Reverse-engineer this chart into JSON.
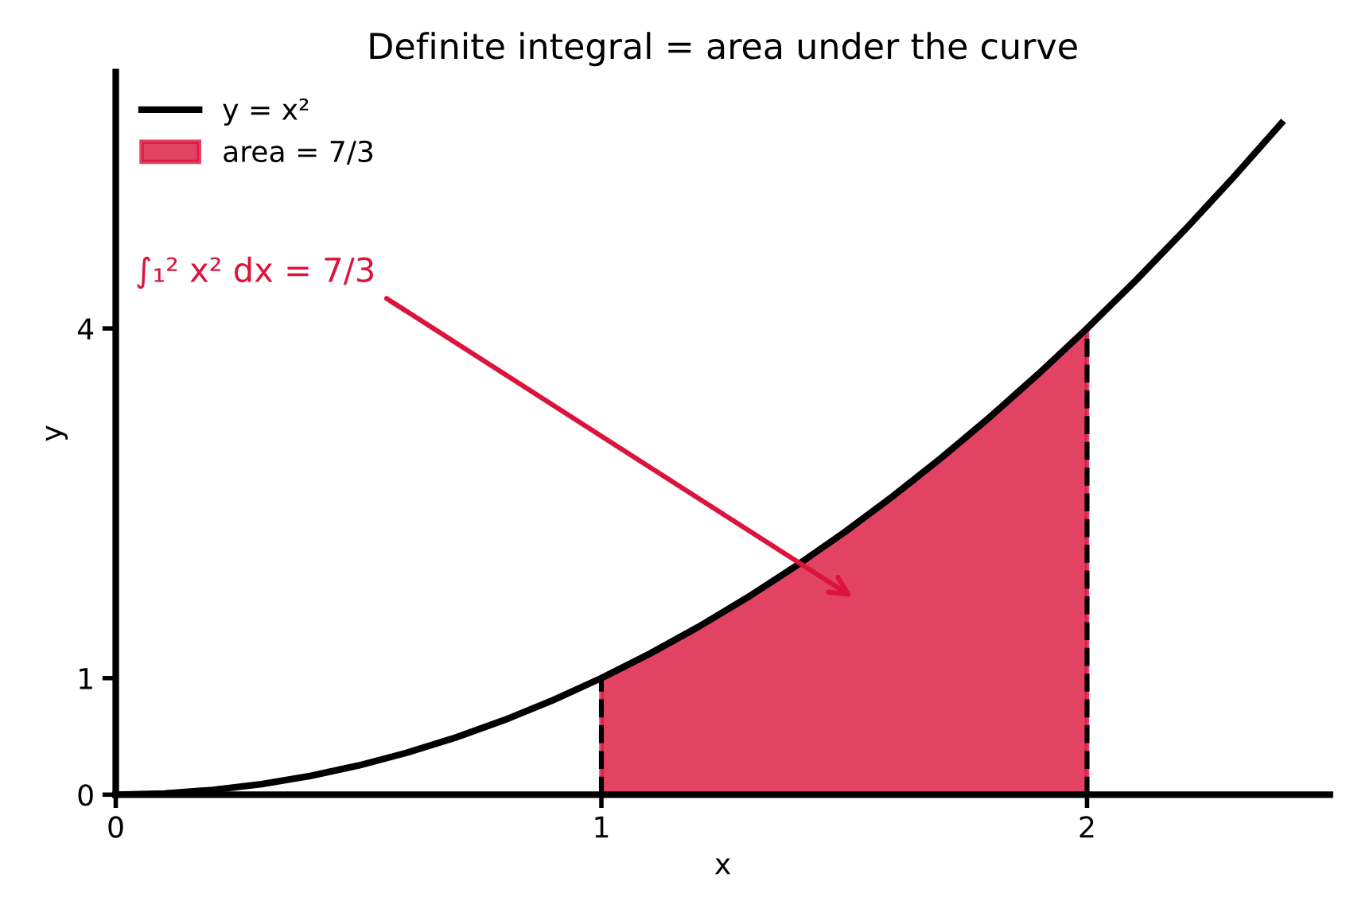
{
  "chart_data": {
    "type": "line",
    "title": "Definite integral = area under the curve",
    "xlabel": "x",
    "ylabel": "y",
    "xlim": [
      0,
      2.5
    ],
    "ylim": [
      0,
      6.2
    ],
    "xticks": [
      0,
      1,
      2
    ],
    "yticks": [
      0,
      1,
      4
    ],
    "grid": false,
    "legend": "top left",
    "marker": "none",
    "series": [
      {
        "name": "y = x²",
        "color": "#000000",
        "line_style": "solid",
        "x": [
          0,
          0.1,
          0.2,
          0.3,
          0.4,
          0.5,
          0.6,
          0.7,
          0.8,
          0.9,
          1.0,
          1.1,
          1.2,
          1.3,
          1.4,
          1.5,
          1.6,
          1.7,
          1.8,
          1.9,
          2.0,
          2.1,
          2.2,
          2.3,
          2.4
        ],
        "values": [
          0,
          0.01,
          0.04,
          0.09,
          0.16,
          0.25,
          0.36,
          0.49,
          0.64,
          0.81,
          1.0,
          1.21,
          1.44,
          1.69,
          1.96,
          2.25,
          2.56,
          2.89,
          3.24,
          3.61,
          4.0,
          4.41,
          4.84,
          5.29,
          5.76
        ]
      },
      {
        "name": "area = 7/3",
        "type": "area",
        "color": "#dc143c",
        "x": [
          1.0,
          1.2,
          1.4,
          1.6,
          1.8,
          2.0
        ],
        "values": [
          1.0,
          1.44,
          1.96,
          2.56,
          3.24,
          4.0
        ]
      },
      {
        "type": "line",
        "color": "#000000",
        "line_style": "dashed",
        "x": [
          1,
          1
        ],
        "values": [
          0,
          1
        ]
      },
      {
        "type": "line",
        "color": "#000000",
        "line_style": "dashed",
        "x": [
          2,
          2
        ],
        "values": [
          0,
          4
        ]
      }
    ],
    "annotations": [
      "∫₁² x² dx = 7/3"
    ]
  }
}
